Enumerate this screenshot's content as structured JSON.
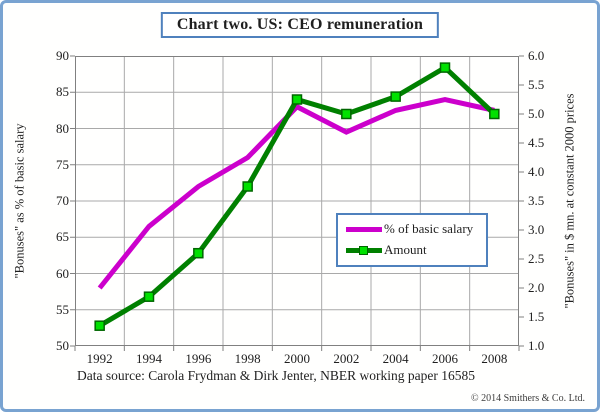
{
  "title": "Chart two. US: CEO remuneration",
  "colors": {
    "frame_border": "#79a3d1",
    "box_border": "#4f81bd",
    "grid": "#a9a9a9",
    "axis": "#808080",
    "magenta": "#cc00cc",
    "green": "#008000",
    "green_marker_fill": "#00e100",
    "green_marker_stroke": "#006600"
  },
  "chart_data": {
    "type": "line",
    "title": "Chart two. US: CEO remuneration",
    "categories": [
      "1992",
      "1994",
      "1996",
      "1998",
      "2000",
      "2002",
      "2004",
      "2006",
      "2008"
    ],
    "series": [
      {
        "name": "% of basic salary",
        "axis": "left",
        "color": "#cc00cc",
        "marker": "none",
        "values": [
          58,
          66.5,
          72,
          76,
          83,
          79.5,
          82.5,
          84,
          82.5
        ]
      },
      {
        "name": "Amount",
        "axis": "right",
        "color": "#008000",
        "marker": "square",
        "marker_fill": "#00e100",
        "marker_stroke": "#006600",
        "values": [
          1.35,
          1.85,
          2.6,
          3.75,
          5.25,
          5.0,
          5.3,
          5.8,
          5.0
        ]
      }
    ],
    "left_axis": {
      "label": "\"Bonuses\" as % of basic salary",
      "min": 50,
      "max": 90,
      "step": 5
    },
    "right_axis": {
      "label": "\"Bonuses\" in $ mn. at constant 2000 prices",
      "min": 1.0,
      "max": 6.0,
      "step": 0.5
    },
    "grid": true,
    "legend_position": "inside-right"
  },
  "footer": {
    "source": "Data source: Carola Frydman & Dirk Jenter, NBER working paper 16585",
    "copyright": "© 2014 Smithers & Co. Ltd."
  }
}
